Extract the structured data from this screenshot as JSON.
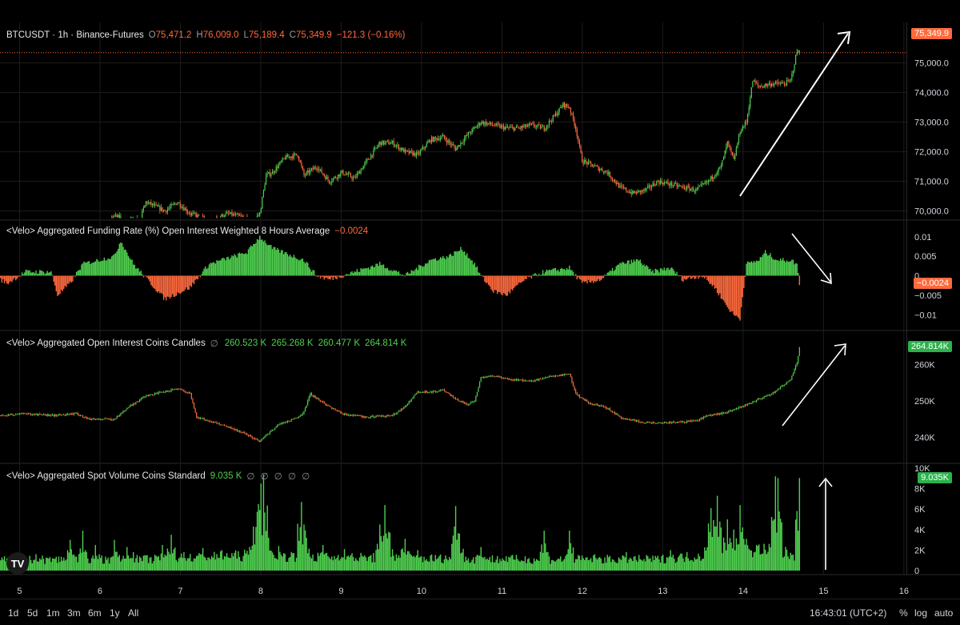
{
  "header": {
    "symbol": "BTCUSDT · 1h · Binance-Futures",
    "o_label": "O",
    "o": "75,471.2",
    "h_label": "H",
    "h": "76,009.0",
    "l_label": "L",
    "l": "75,189.4",
    "c_label": "C",
    "c": "75,349.9",
    "change": "−121.3 (−0.16%)"
  },
  "funding": {
    "label": "<Velo> Aggregated Funding Rate (%) Open Interest Weighted 8 Hours Average",
    "value": "−0.0024"
  },
  "oi": {
    "label": "<Velo> Aggregated Open Interest Coins Candles",
    "symbol": "∅",
    "o": "260.523 K",
    "h": "265.268 K",
    "l": "260.477 K",
    "c": "264.814 K"
  },
  "volume": {
    "label": "<Velo> Aggregated Spot Volume Coins Standard",
    "value": "9.035 K",
    "empty": "∅ ∅ ∅ ∅ ∅"
  },
  "price_labels": {
    "price": "75,349.9",
    "funding": "−0.0024",
    "oi": "264.814K",
    "volume": "9.035K"
  },
  "axes": {
    "price_ticks": [
      "75,000.0",
      "74,000.0",
      "73,000.0",
      "72,000.0",
      "71,000.0",
      "70,000.0"
    ],
    "funding_ticks": [
      "0.01",
      "0.005",
      "0",
      "−0.005",
      "−0.01"
    ],
    "oi_ticks": [
      "260K",
      "250K",
      "240K"
    ],
    "volume_ticks": [
      "10K",
      "8K",
      "6K",
      "4K",
      "2K",
      "0"
    ],
    "x_ticks": [
      "5",
      "6",
      "7",
      "8",
      "9",
      "10",
      "11",
      "12",
      "13",
      "14",
      "15",
      "16"
    ]
  },
  "bottom": {
    "timeframes": [
      "1d",
      "5d",
      "1m",
      "3m",
      "6m",
      "1y",
      "All"
    ],
    "time": "16:43:01 (UTC+2)",
    "percent": "%",
    "log": "log",
    "auto": "auto"
  },
  "logo_text": "TV",
  "colors": {
    "up": "#4fd04f",
    "down": "#ff6a3d",
    "background": "#000000",
    "grid": "#1c1c1c",
    "text": "#d1d4dc"
  },
  "chart_data": [
    {
      "type": "candlestick",
      "title": "BTCUSDT · 1h · Binance-Futures",
      "ylim": [
        69800,
        76100
      ],
      "x_days": [
        5,
        6,
        7,
        8,
        9,
        10,
        11,
        12,
        13,
        14,
        15,
        16
      ],
      "keypoints": [
        [
          0,
          69600
        ],
        [
          20,
          69500
        ],
        [
          40,
          69700
        ],
        [
          70,
          69600
        ],
        [
          90,
          69800
        ],
        [
          110,
          69700
        ],
        [
          115,
          70300
        ],
        [
          130,
          70000
        ],
        [
          140,
          70300
        ],
        [
          150,
          69900
        ],
        [
          165,
          69700
        ],
        [
          180,
          69900
        ],
        [
          190,
          69800
        ],
        [
          200,
          69700
        ],
        [
          205,
          69900
        ],
        [
          210,
          71200
        ],
        [
          215,
          71300
        ],
        [
          225,
          71800
        ],
        [
          235,
          71900
        ],
        [
          240,
          71200
        ],
        [
          250,
          71500
        ],
        [
          260,
          71000
        ],
        [
          270,
          71300
        ],
        [
          280,
          71100
        ],
        [
          290,
          71700
        ],
        [
          300,
          72300
        ],
        [
          310,
          72300
        ],
        [
          320,
          72000
        ],
        [
          330,
          71900
        ],
        [
          340,
          72400
        ],
        [
          350,
          72500
        ],
        [
          360,
          72100
        ],
        [
          370,
          72600
        ],
        [
          380,
          73000
        ],
        [
          390,
          72900
        ],
        [
          400,
          72800
        ],
        [
          410,
          72800
        ],
        [
          420,
          72900
        ],
        [
          430,
          72800
        ],
        [
          440,
          73300
        ],
        [
          445,
          73600
        ],
        [
          450,
          73500
        ],
        [
          455,
          72800
        ],
        [
          460,
          71700
        ],
        [
          470,
          71500
        ],
        [
          480,
          71300
        ],
        [
          490,
          70800
        ],
        [
          500,
          70600
        ],
        [
          510,
          70700
        ],
        [
          520,
          71000
        ],
        [
          530,
          70900
        ],
        [
          540,
          70800
        ],
        [
          550,
          70700
        ],
        [
          560,
          71000
        ],
        [
          570,
          71500
        ],
        [
          575,
          72300
        ],
        [
          580,
          71700
        ],
        [
          585,
          72700
        ],
        [
          590,
          73000
        ],
        [
          595,
          74400
        ],
        [
          600,
          74200
        ],
        [
          610,
          74300
        ],
        [
          620,
          74300
        ],
        [
          625,
          74400
        ],
        [
          630,
          75400
        ],
        [
          632,
          75350
        ]
      ],
      "last": 75349.9
    },
    {
      "type": "bar",
      "title": "<Velo> Aggregated Funding Rate (%) Open Interest Weighted 8 Hours Average",
      "ylim": [
        -0.012,
        0.012
      ],
      "keypoints": [
        [
          0,
          -0.001
        ],
        [
          5,
          -0.002
        ],
        [
          20,
          0.001
        ],
        [
          40,
          0.001
        ],
        [
          45,
          -0.005
        ],
        [
          55,
          -0.002
        ],
        [
          65,
          0.003
        ],
        [
          90,
          0.005
        ],
        [
          95,
          0.009
        ],
        [
          105,
          0.003
        ],
        [
          130,
          -0.006
        ],
        [
          150,
          -0.003
        ],
        [
          165,
          0.003
        ],
        [
          175,
          0.004
        ],
        [
          195,
          0.006
        ],
        [
          205,
          0.01
        ],
        [
          215,
          0.007
        ],
        [
          240,
          0.004
        ],
        [
          250,
          0
        ],
        [
          260,
          -0.001
        ],
        [
          280,
          0.001
        ],
        [
          300,
          0.003
        ],
        [
          320,
          0
        ],
        [
          340,
          0.004
        ],
        [
          355,
          0.005
        ],
        [
          365,
          0.007
        ],
        [
          375,
          0.003
        ],
        [
          380,
          0
        ],
        [
          390,
          -0.004
        ],
        [
          400,
          -0.005
        ],
        [
          415,
          -0.001
        ],
        [
          430,
          0.001
        ],
        [
          450,
          0.002
        ],
        [
          460,
          -0.002
        ],
        [
          475,
          -0.001
        ],
        [
          490,
          0.003
        ],
        [
          505,
          0.004
        ],
        [
          515,
          0.001
        ],
        [
          530,
          0.002
        ],
        [
          540,
          -0.001
        ],
        [
          555,
          0
        ],
        [
          565,
          -0.003
        ],
        [
          575,
          -0.008
        ],
        [
          580,
          -0.01
        ],
        [
          585,
          -0.011
        ],
        [
          590,
          0.003
        ],
        [
          600,
          0.004
        ],
        [
          605,
          0.006
        ],
        [
          615,
          0.004
        ],
        [
          625,
          0.004
        ],
        [
          630,
          0.003
        ],
        [
          632,
          -0.0024
        ]
      ],
      "last": -0.0024
    },
    {
      "type": "candlestick",
      "title": "<Velo> Aggregated Open Interest Coins Candles",
      "ylim": [
        235000,
        267000
      ],
      "keypoints": [
        [
          0,
          246000
        ],
        [
          20,
          246500
        ],
        [
          40,
          246000
        ],
        [
          60,
          246500
        ],
        [
          70,
          245000
        ],
        [
          90,
          245000
        ],
        [
          100,
          248000
        ],
        [
          115,
          251500
        ],
        [
          130,
          252500
        ],
        [
          140,
          253500
        ],
        [
          150,
          252000
        ],
        [
          155,
          245500
        ],
        [
          165,
          244500
        ],
        [
          175,
          243500
        ],
        [
          190,
          241500
        ],
        [
          205,
          239000
        ],
        [
          220,
          243500
        ],
        [
          235,
          245500
        ],
        [
          240,
          247000
        ],
        [
          245,
          252000
        ],
        [
          255,
          249500
        ],
        [
          270,
          246500
        ],
        [
          290,
          245500
        ],
        [
          310,
          246000
        ],
        [
          320,
          248500
        ],
        [
          330,
          252500
        ],
        [
          340,
          252500
        ],
        [
          350,
          253000
        ],
        [
          360,
          250500
        ],
        [
          370,
          249000
        ],
        [
          375,
          250000
        ],
        [
          380,
          256500
        ],
        [
          390,
          257000
        ],
        [
          400,
          256000
        ],
        [
          420,
          255500
        ],
        [
          440,
          257000
        ],
        [
          450,
          257500
        ],
        [
          455,
          252000
        ],
        [
          465,
          249500
        ],
        [
          480,
          248000
        ],
        [
          490,
          245500
        ],
        [
          510,
          244000
        ],
        [
          530,
          244000
        ],
        [
          550,
          244500
        ],
        [
          560,
          246000
        ],
        [
          570,
          246500
        ],
        [
          580,
          247500
        ],
        [
          590,
          249000
        ],
        [
          600,
          250500
        ],
        [
          610,
          252000
        ],
        [
          620,
          254500
        ],
        [
          625,
          256000
        ],
        [
          630,
          260500
        ],
        [
          632,
          264814
        ]
      ],
      "last": 264814
    },
    {
      "type": "bar",
      "title": "<Velo> Aggregated Spot Volume Coins Standard",
      "ylim": [
        0,
        10000
      ],
      "base_keypoints": [
        [
          0,
          1000
        ],
        [
          60,
          1100
        ],
        [
          120,
          1100
        ],
        [
          200,
          1500
        ],
        [
          260,
          1300
        ],
        [
          330,
          1200
        ],
        [
          400,
          1100
        ],
        [
          460,
          1100
        ],
        [
          520,
          1100
        ],
        [
          560,
          1500
        ],
        [
          600,
          2000
        ],
        [
          632,
          1500
        ]
      ],
      "spikes": [
        [
          5,
          1200
        ],
        [
          28,
          1600
        ],
        [
          41,
          1200
        ],
        [
          55,
          3000
        ],
        [
          65,
          3900
        ],
        [
          75,
          2500
        ],
        [
          90,
          3000
        ],
        [
          100,
          2300
        ],
        [
          105,
          1800
        ],
        [
          128,
          2500
        ],
        [
          135,
          3500
        ],
        [
          145,
          1800
        ],
        [
          160,
          2200
        ],
        [
          175,
          2000
        ],
        [
          200,
          4300
        ],
        [
          204,
          6500
        ],
        [
          206,
          8500
        ],
        [
          208,
          9400
        ],
        [
          212,
          3200
        ],
        [
          220,
          2400
        ],
        [
          238,
          6700
        ],
        [
          242,
          3200
        ],
        [
          255,
          2500
        ],
        [
          272,
          2100
        ],
        [
          300,
          4500
        ],
        [
          304,
          6400
        ],
        [
          308,
          3700
        ],
        [
          320,
          3100
        ],
        [
          330,
          2000
        ],
        [
          360,
          6300
        ],
        [
          363,
          3200
        ],
        [
          380,
          2300
        ],
        [
          400,
          1400
        ],
        [
          430,
          3900
        ],
        [
          450,
          3900
        ],
        [
          470,
          1600
        ],
        [
          495,
          1800
        ],
        [
          530,
          2000
        ],
        [
          560,
          4600
        ],
        [
          562,
          6100
        ],
        [
          567,
          7300
        ],
        [
          570,
          4200
        ],
        [
          575,
          5000
        ],
        [
          580,
          4000
        ],
        [
          585,
          6400
        ],
        [
          590,
          3100
        ],
        [
          600,
          2400
        ],
        [
          613,
          9200
        ],
        [
          615,
          9035
        ],
        [
          632,
          9035
        ]
      ],
      "last": 9035
    }
  ]
}
